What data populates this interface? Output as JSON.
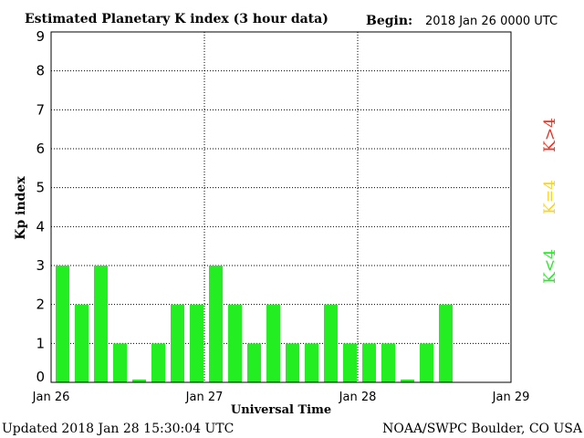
{
  "chart_data": {
    "type": "bar",
    "title": "Estimated Planetary K index (3 hour data)",
    "begin_label": "Begin:",
    "begin_value": "2018 Jan 26 0000 UTC",
    "xlabel": "Universal Time",
    "ylabel": "Kp index",
    "ylim": [
      0,
      9
    ],
    "y_ticks": [
      "0",
      "1",
      "2",
      "3",
      "4",
      "5",
      "6",
      "7",
      "8",
      "9"
    ],
    "x_ticks": [
      "Jan 26",
      "Jan 27",
      "Jan 28",
      "Jan 29"
    ],
    "grid": true,
    "bins_per_day": 8,
    "days": 3,
    "values": [
      3,
      2,
      3,
      1,
      0,
      1,
      2,
      2,
      3,
      2,
      1,
      2,
      1,
      1,
      2,
      1,
      1,
      1,
      0,
      1,
      2
    ],
    "legend": [
      {
        "label": "K>4",
        "color": "#ff2a1a"
      },
      {
        "label": "K=4",
        "color": "#ffd21a"
      },
      {
        "label": "K<4",
        "color": "#22ee22"
      }
    ],
    "bar_color": "#22ee22"
  },
  "footer": {
    "updated": "Updated 2018 Jan 28 15:30:04 UTC",
    "source": "NOAA/SWPC Boulder, CO USA"
  }
}
